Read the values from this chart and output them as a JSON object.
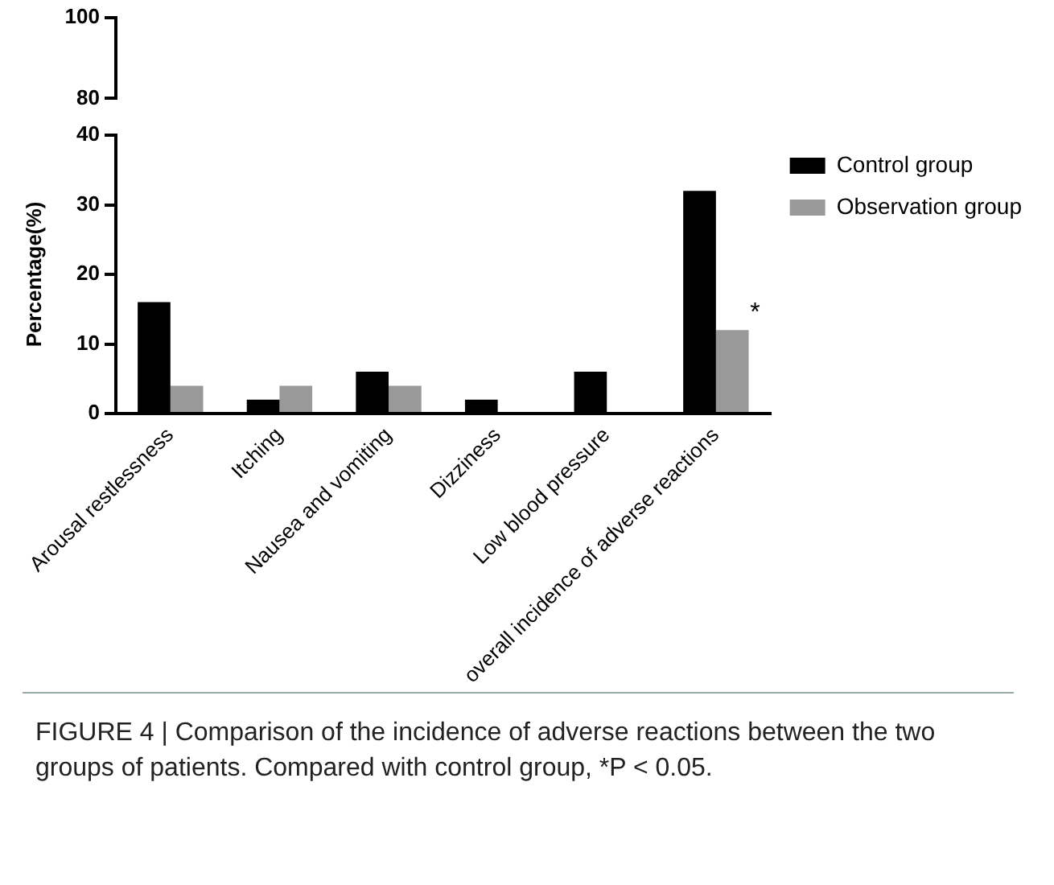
{
  "chart_data": [
    {
      "type": "other",
      "annotations": [
        "100",
        "80"
      ]
    },
    {
      "type": "bar",
      "ylabel": "Percentage(%)",
      "categories": [
        "Arousal restlessness",
        "Itching",
        "Nausea and vomiting",
        "Dizziness",
        "Low blood pressure",
        "overall incidence of adverse reactions"
      ],
      "series": [
        {
          "name": "Control group",
          "color": "#000000",
          "values": [
            16,
            2,
            6,
            2,
            6,
            32
          ]
        },
        {
          "name": "Observation group",
          "color": "#999999",
          "values": [
            4,
            4,
            4,
            0,
            0,
            12
          ]
        }
      ],
      "ylim": [
        0,
        40
      ],
      "yticks": [
        0,
        10,
        20,
        30,
        40
      ],
      "grid": false,
      "legend": "top right",
      "annotations": [
        {
          "text": "*",
          "x": "overall incidence of adverse reactions",
          "y": 12
        },
        "FIGURE 4 | Comparison of the incidence of adverse reactions between the two groups of patients. Compared with control group, *P < 0.05."
      ]
    }
  ]
}
